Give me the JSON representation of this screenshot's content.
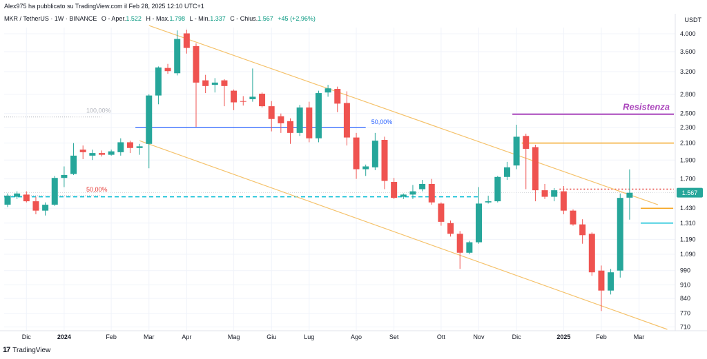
{
  "header": {
    "published": "Alex975 ha pubblicato su TradingView.com il Feb 28, 2025 12:10 UTC+1",
    "symbol": "MKR / TetherUS · 1W · BINANCE",
    "open_label": "O - Aper.",
    "open": "1.522",
    "high_label": "H - Max.",
    "high": "1.798",
    "low_label": "L - Min.",
    "low": "1.337",
    "close_label": "C - Chius.",
    "close": "1.567",
    "change": "+45 (+2,96%)"
  },
  "currency": "USDT",
  "footer": {
    "logo": "17",
    "brand": "TradingView"
  },
  "colors": {
    "up": "#26a69a",
    "down": "#ef5350",
    "channel": "#f5c26b",
    "horizontal_blue": "#2962ff",
    "dashed_cyan": "#00bcd4",
    "resistance": "#ab47bc",
    "orange_level": "#f5a623",
    "red_dotted": "#e53935",
    "price_tag": "#26a69a"
  },
  "chart_data": {
    "type": "candlestick",
    "y_scale": "log",
    "ylim": [
      700,
      4150
    ],
    "y_ticks": [
      "4.000",
      "3.600",
      "3.200",
      "2.800",
      "2.500",
      "2.300",
      "2.100",
      "1.900",
      "1.700",
      "1.567",
      "1.430",
      "1.310",
      "1.190",
      "1.090",
      "990",
      "910",
      "840",
      "770",
      "710"
    ],
    "x_ticks": [
      "Dic",
      "2024",
      "Feb",
      "Mar",
      "Apr",
      "Mag",
      "Giu",
      "Lug",
      "Ago",
      "Set",
      "Ott",
      "Nov",
      "Dic",
      "2025",
      "Feb",
      "Mar"
    ],
    "x_tick_index": [
      2,
      6,
      11,
      15,
      19,
      24,
      28,
      32,
      37,
      41,
      46,
      50,
      54,
      59,
      63,
      67
    ],
    "candles": [
      {
        "o": 1460,
        "h": 1560,
        "l": 1440,
        "c": 1540
      },
      {
        "o": 1530,
        "h": 1580,
        "l": 1510,
        "c": 1560
      },
      {
        "o": 1550,
        "h": 1580,
        "l": 1480,
        "c": 1490
      },
      {
        "o": 1490,
        "h": 1530,
        "l": 1380,
        "c": 1410
      },
      {
        "o": 1410,
        "h": 1480,
        "l": 1370,
        "c": 1460
      },
      {
        "o": 1460,
        "h": 1730,
        "l": 1450,
        "c": 1710
      },
      {
        "o": 1710,
        "h": 1830,
        "l": 1620,
        "c": 1740
      },
      {
        "o": 1750,
        "h": 2100,
        "l": 1740,
        "c": 1950
      },
      {
        "o": 2020,
        "h": 2070,
        "l": 1910,
        "c": 1990
      },
      {
        "o": 1950,
        "h": 2020,
        "l": 1900,
        "c": 1980
      },
      {
        "o": 1980,
        "h": 2010,
        "l": 1940,
        "c": 1960
      },
      {
        "o": 1960,
        "h": 2020,
        "l": 1950,
        "c": 2000
      },
      {
        "o": 1990,
        "h": 2160,
        "l": 1950,
        "c": 2110
      },
      {
        "o": 2110,
        "h": 2130,
        "l": 1980,
        "c": 2040
      },
      {
        "o": 2040,
        "h": 2090,
        "l": 1960,
        "c": 2060
      },
      {
        "o": 2090,
        "h": 2800,
        "l": 1810,
        "c": 2780
      },
      {
        "o": 2780,
        "h": 3300,
        "l": 2640,
        "c": 3280
      },
      {
        "o": 3270,
        "h": 3350,
        "l": 3160,
        "c": 3210
      },
      {
        "o": 3170,
        "h": 4080,
        "l": 3130,
        "c": 3880
      },
      {
        "o": 4010,
        "h": 4100,
        "l": 3560,
        "c": 3680
      },
      {
        "o": 3720,
        "h": 3780,
        "l": 2310,
        "c": 3000
      },
      {
        "o": 3040,
        "h": 3140,
        "l": 2820,
        "c": 2940
      },
      {
        "o": 2960,
        "h": 3080,
        "l": 2830,
        "c": 3000
      },
      {
        "o": 3040,
        "h": 3060,
        "l": 2610,
        "c": 2940
      },
      {
        "o": 2860,
        "h": 2880,
        "l": 2550,
        "c": 2670
      },
      {
        "o": 2690,
        "h": 2770,
        "l": 2620,
        "c": 2680
      },
      {
        "o": 2720,
        "h": 3260,
        "l": 2680,
        "c": 2760
      },
      {
        "o": 2810,
        "h": 2830,
        "l": 2590,
        "c": 2610
      },
      {
        "o": 2610,
        "h": 2690,
        "l": 2250,
        "c": 2420
      },
      {
        "o": 2460,
        "h": 2500,
        "l": 2230,
        "c": 2360
      },
      {
        "o": 2390,
        "h": 2430,
        "l": 2090,
        "c": 2230
      },
      {
        "o": 2230,
        "h": 2630,
        "l": 2190,
        "c": 2590
      },
      {
        "o": 2590,
        "h": 2680,
        "l": 2110,
        "c": 2160
      },
      {
        "o": 2160,
        "h": 2860,
        "l": 2110,
        "c": 2820
      },
      {
        "o": 2830,
        "h": 2960,
        "l": 2760,
        "c": 2900
      },
      {
        "o": 2890,
        "h": 2930,
        "l": 2520,
        "c": 2650
      },
      {
        "o": 2660,
        "h": 2850,
        "l": 2070,
        "c": 2170
      },
      {
        "o": 2170,
        "h": 2230,
        "l": 1700,
        "c": 1800
      },
      {
        "o": 1800,
        "h": 1850,
        "l": 1730,
        "c": 1830
      },
      {
        "o": 1820,
        "h": 2230,
        "l": 1790,
        "c": 2130
      },
      {
        "o": 2140,
        "h": 2180,
        "l": 1600,
        "c": 1680
      },
      {
        "o": 1670,
        "h": 1710,
        "l": 1510,
        "c": 1520
      },
      {
        "o": 1530,
        "h": 1560,
        "l": 1510,
        "c": 1550
      },
      {
        "o": 1550,
        "h": 1640,
        "l": 1510,
        "c": 1580
      },
      {
        "o": 1600,
        "h": 1690,
        "l": 1580,
        "c": 1650
      },
      {
        "o": 1650,
        "h": 1700,
        "l": 1460,
        "c": 1480
      },
      {
        "o": 1470,
        "h": 1480,
        "l": 1290,
        "c": 1320
      },
      {
        "o": 1310,
        "h": 1330,
        "l": 1210,
        "c": 1230
      },
      {
        "o": 1230,
        "h": 1250,
        "l": 1000,
        "c": 1100
      },
      {
        "o": 1100,
        "h": 1180,
        "l": 1090,
        "c": 1170
      },
      {
        "o": 1170,
        "h": 1620,
        "l": 1160,
        "c": 1470
      },
      {
        "o": 1480,
        "h": 1540,
        "l": 1470,
        "c": 1490
      },
      {
        "o": 1490,
        "h": 1730,
        "l": 1480,
        "c": 1720
      },
      {
        "o": 1720,
        "h": 1880,
        "l": 1690,
        "c": 1820
      },
      {
        "o": 1840,
        "h": 2340,
        "l": 1800,
        "c": 2180
      },
      {
        "o": 2190,
        "h": 2220,
        "l": 1600,
        "c": 2030
      },
      {
        "o": 2050,
        "h": 2080,
        "l": 1490,
        "c": 1590
      },
      {
        "o": 1590,
        "h": 1650,
        "l": 1510,
        "c": 1530
      },
      {
        "o": 1530,
        "h": 1610,
        "l": 1490,
        "c": 1590
      },
      {
        "o": 1580,
        "h": 1630,
        "l": 1380,
        "c": 1410
      },
      {
        "o": 1410,
        "h": 1420,
        "l": 1290,
        "c": 1300
      },
      {
        "o": 1300,
        "h": 1340,
        "l": 1160,
        "c": 1220
      },
      {
        "o": 1230,
        "h": 1240,
        "l": 960,
        "c": 980
      },
      {
        "o": 990,
        "h": 1020,
        "l": 780,
        "c": 880
      },
      {
        "o": 880,
        "h": 1000,
        "l": 860,
        "c": 980
      },
      {
        "o": 990,
        "h": 1560,
        "l": 950,
        "c": 1520
      },
      {
        "o": 1522,
        "h": 1798,
        "l": 1337,
        "c": 1567
      }
    ],
    "channel_upper": [
      {
        "i": 15,
        "v": 4200
      },
      {
        "i": 69,
        "v": 1460
      }
    ],
    "channel_lower": [
      {
        "i": 14,
        "v": 2130
      },
      {
        "i": 70,
        "v": 700
      }
    ],
    "levels": [
      {
        "name": "50,00%",
        "value": 2300,
        "from": 14,
        "to": 38,
        "kind": "blue",
        "label": "50,00%"
      },
      {
        "name": "100,00%",
        "value": 2450,
        "from": 0,
        "to": 10,
        "kind": "fib-grey",
        "label": "100,00%"
      },
      {
        "name": "50,00% left",
        "value": 1540,
        "from": 0,
        "to": 10,
        "kind": "fib-grey-red",
        "label": "50,00%"
      },
      {
        "name": "dashed",
        "value": 1530,
        "from": 0,
        "to": 50,
        "kind": "dashed-cyan",
        "label": ""
      },
      {
        "name": "Resistenza",
        "value": 2490,
        "from": 54,
        "to": 71,
        "kind": "resistance",
        "label": "Resistenza"
      },
      {
        "name": "orange-upper",
        "value": 2100,
        "from": 55,
        "to": 71,
        "kind": "orange",
        "label": ""
      },
      {
        "name": "red-dotted",
        "value": 1600,
        "from": 59,
        "to": 71,
        "kind": "red-dotted",
        "label": ""
      },
      {
        "name": "orange-lower",
        "value": 1430,
        "from": 68,
        "to": 71,
        "kind": "orange",
        "label": ""
      },
      {
        "name": "cyan-lower",
        "value": 1310,
        "from": 68,
        "to": 71,
        "kind": "cyan",
        "label": ""
      }
    ],
    "last_price": "1.567"
  }
}
